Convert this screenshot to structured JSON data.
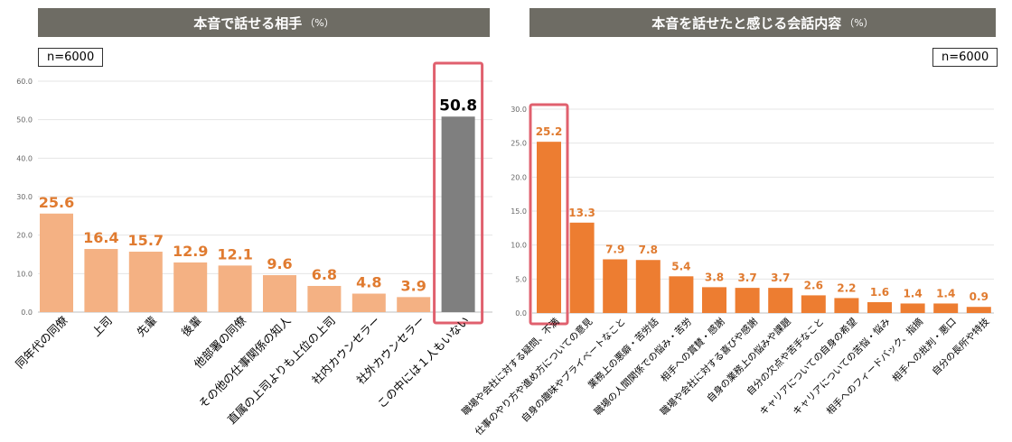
{
  "left_chart": {
    "title": "本音で話せる相手",
    "unit": "（%）",
    "n_label": "n=6000"
  },
  "right_chart": {
    "title": "本音を話せたと感じる会話内容",
    "unit": "（%）",
    "n_label": "n=6000"
  },
  "colors": {
    "title_bar": "#6e6c64",
    "left_bar": "#f4b183",
    "left_highlight_bar": "#7f7f7f",
    "left_value_label": "#e07b30",
    "right_bar": "#ed7d31",
    "right_value_label": "#e07b30",
    "highlight_frame": "#e0606e"
  },
  "chart_data": [
    {
      "type": "bar",
      "title": "本音で話せる相手",
      "unit": "（%）",
      "ylim": [
        0,
        60
      ],
      "yticks": [
        "0.0",
        "10.0",
        "20.0",
        "30.0",
        "40.0",
        "50.0",
        "60.0"
      ],
      "grid": true,
      "categories": [
        "同年代の同僚",
        "上司",
        "先輩",
        "後輩",
        "他部署の同僚",
        "その他の仕事関係の知人",
        "直属の上司よりも上位の上司",
        "社内カウンセラー",
        "社外カウンセラー",
        "この中には１人もいない"
      ],
      "values": [
        25.6,
        16.4,
        15.7,
        12.9,
        12.1,
        9.6,
        6.8,
        4.8,
        3.9,
        50.8
      ],
      "value_labels": [
        "25.6",
        "16.4",
        "15.7",
        "12.9",
        "12.1",
        "9.6",
        "6.8",
        "4.8",
        "3.9",
        "50.8"
      ],
      "highlight_index": 9
    },
    {
      "type": "bar",
      "title": "本音を話せたと感じる会話内容",
      "unit": "（%）",
      "ylim": [
        0,
        30
      ],
      "yticks": [
        "0.0",
        "5.0",
        "10.0",
        "15.0",
        "20.0",
        "25.0",
        "30.0"
      ],
      "grid": true,
      "categories": [
        "職場や会社に対する疑問、不満",
        "仕事のやり方や進め方についての意見",
        "自身の趣味やプライベートなこと",
        "業務上の悪癖・苦労話",
        "職場の人間関係での悩み・苦労",
        "相手への賞賛・感謝",
        "職場や会社に対する喜びや感謝",
        "自身の業務上の悩みや課題",
        "自分の欠点や苦手なこと",
        "キャリアについての自身の希望",
        "キャリアについての苦悩・悩み",
        "相手へのフィードバック、指摘",
        "相手への批判・悪口",
        "自分の長所や特技"
      ],
      "values": [
        25.2,
        13.3,
        7.9,
        7.8,
        5.4,
        3.8,
        3.7,
        3.7,
        2.6,
        2.2,
        1.6,
        1.4,
        1.4,
        0.9
      ],
      "value_labels": [
        "25.2",
        "13.3",
        "7.9",
        "7.8",
        "5.4",
        "3.8",
        "3.7",
        "3.7",
        "2.6",
        "2.2",
        "1.6",
        "1.4",
        "1.4",
        "0.9"
      ],
      "highlight_index": 0
    }
  ]
}
